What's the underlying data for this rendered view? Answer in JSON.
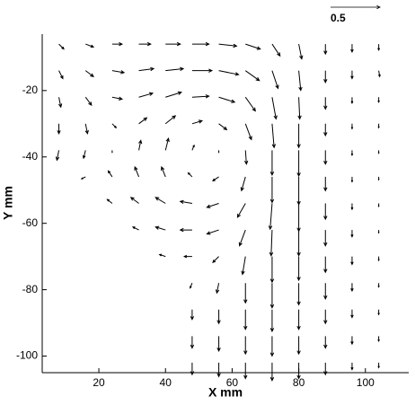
{
  "chart_data": {
    "type": "quiver",
    "x_label": "X mm",
    "y_label": "Y mm",
    "xlim": [
      3,
      113
    ],
    "ylim": [
      -105,
      -3
    ],
    "xticks": [
      20,
      40,
      60,
      80,
      100
    ],
    "yticks": [
      -20,
      -40,
      -60,
      -80,
      -100
    ],
    "color": "#000000",
    "reference_vector": 0.5,
    "vectors": [
      {
        "x": 8,
        "y": -6,
        "u": 0.05,
        "v": -0.05
      },
      {
        "x": 16,
        "y": -6,
        "u": 0.08,
        "v": -0.03
      },
      {
        "x": 24,
        "y": -6,
        "u": 0.1,
        "v": 0
      },
      {
        "x": 32,
        "y": -6,
        "u": 0.12,
        "v": 0
      },
      {
        "x": 40,
        "y": -6,
        "u": 0.15,
        "v": 0
      },
      {
        "x": 48,
        "y": -6,
        "u": 0.17,
        "v": 0
      },
      {
        "x": 56,
        "y": -6,
        "u": 0.18,
        "v": -0.02
      },
      {
        "x": 64,
        "y": -6,
        "u": 0.15,
        "v": -0.05
      },
      {
        "x": 72,
        "y": -6,
        "u": 0.08,
        "v": -0.12
      },
      {
        "x": 80,
        "y": -6,
        "u": 0.03,
        "v": -0.15
      },
      {
        "x": 88,
        "y": -6,
        "u": 0,
        "v": -0.1
      },
      {
        "x": 96,
        "y": -6,
        "u": 0,
        "v": -0.08
      },
      {
        "x": 104,
        "y": -6,
        "u": 0,
        "v": -0.06
      },
      {
        "x": 8,
        "y": -14,
        "u": 0.04,
        "v": -0.08
      },
      {
        "x": 16,
        "y": -14,
        "u": 0.08,
        "v": -0.06
      },
      {
        "x": 24,
        "y": -14,
        "u": 0.12,
        "v": -0.02
      },
      {
        "x": 32,
        "y": -14,
        "u": 0.15,
        "v": 0.02
      },
      {
        "x": 40,
        "y": -14,
        "u": 0.18,
        "v": 0.02
      },
      {
        "x": 48,
        "y": -14,
        "u": 0.2,
        "v": 0
      },
      {
        "x": 56,
        "y": -14,
        "u": 0.2,
        "v": -0.04
      },
      {
        "x": 64,
        "y": -14,
        "u": 0.14,
        "v": -0.1
      },
      {
        "x": 72,
        "y": -14,
        "u": 0.06,
        "v": -0.18
      },
      {
        "x": 80,
        "y": -14,
        "u": 0.02,
        "v": -0.2
      },
      {
        "x": 88,
        "y": -14,
        "u": 0,
        "v": -0.12
      },
      {
        "x": 96,
        "y": -14,
        "u": 0,
        "v": -0.08
      },
      {
        "x": 104,
        "y": -14,
        "u": 0.01,
        "v": -0.06
      },
      {
        "x": 8,
        "y": -22,
        "u": 0.02,
        "v": -0.1
      },
      {
        "x": 16,
        "y": -22,
        "u": 0.06,
        "v": -0.08
      },
      {
        "x": 24,
        "y": -22,
        "u": 0.1,
        "v": -0.02
      },
      {
        "x": 32,
        "y": -22,
        "u": 0.14,
        "v": 0.04
      },
      {
        "x": 40,
        "y": -22,
        "u": 0.16,
        "v": 0.05
      },
      {
        "x": 48,
        "y": -22,
        "u": 0.17,
        "v": 0.01
      },
      {
        "x": 56,
        "y": -22,
        "u": 0.16,
        "v": -0.05
      },
      {
        "x": 64,
        "y": -22,
        "u": 0.1,
        "v": -0.14
      },
      {
        "x": 72,
        "y": -22,
        "u": 0.04,
        "v": -0.22
      },
      {
        "x": 80,
        "y": -22,
        "u": 0.01,
        "v": -0.22
      },
      {
        "x": 88,
        "y": -22,
        "u": 0,
        "v": -0.12
      },
      {
        "x": 96,
        "y": -22,
        "u": 0,
        "v": -0.06
      },
      {
        "x": 104,
        "y": -22,
        "u": 0,
        "v": -0.05
      },
      {
        "x": 8,
        "y": -30,
        "u": 0,
        "v": -0.1
      },
      {
        "x": 16,
        "y": -30,
        "u": 0.02,
        "v": -0.1
      },
      {
        "x": 24,
        "y": -30,
        "u": 0.04,
        "v": -0.04
      },
      {
        "x": 32,
        "y": -30,
        "u": 0.08,
        "v": 0.06
      },
      {
        "x": 40,
        "y": -30,
        "u": 0.1,
        "v": 0.08
      },
      {
        "x": 48,
        "y": -30,
        "u": 0.1,
        "v": 0.03
      },
      {
        "x": 56,
        "y": -30,
        "u": 0.08,
        "v": -0.06
      },
      {
        "x": 64,
        "y": -30,
        "u": 0.06,
        "v": -0.16
      },
      {
        "x": 72,
        "y": -30,
        "u": 0.02,
        "v": -0.24
      },
      {
        "x": 80,
        "y": -30,
        "u": 0,
        "v": -0.24
      },
      {
        "x": 88,
        "y": -30,
        "u": 0,
        "v": -0.12
      },
      {
        "x": 96,
        "y": -30,
        "u": 0,
        "v": -0.05
      },
      {
        "x": 104,
        "y": -30,
        "u": 0,
        "v": -0.04
      },
      {
        "x": 8,
        "y": -38,
        "u": -0.02,
        "v": -0.1
      },
      {
        "x": 16,
        "y": -38,
        "u": -0.02,
        "v": -0.08
      },
      {
        "x": 24,
        "y": -38,
        "u": 0,
        "v": -0.02
      },
      {
        "x": 32,
        "y": -38,
        "u": 0.02,
        "v": 0.1
      },
      {
        "x": 40,
        "y": -38,
        "u": 0.03,
        "v": 0.12
      },
      {
        "x": 48,
        "y": -38,
        "u": 0.02,
        "v": 0.05
      },
      {
        "x": 56,
        "y": -38,
        "u": 0,
        "v": -0.02
      },
      {
        "x": 64,
        "y": -38,
        "u": 0.01,
        "v": -0.14
      },
      {
        "x": 72,
        "y": -38,
        "u": 0,
        "v": -0.25
      },
      {
        "x": 80,
        "y": -38,
        "u": 0,
        "v": -0.26
      },
      {
        "x": 88,
        "y": -38,
        "u": 0,
        "v": -0.14
      },
      {
        "x": 96,
        "y": -38,
        "u": 0,
        "v": -0.05
      },
      {
        "x": 104,
        "y": -38,
        "u": 0,
        "v": -0.03
      },
      {
        "x": 16,
        "y": -46,
        "u": -0.04,
        "v": -0.02
      },
      {
        "x": 24,
        "y": -46,
        "u": -0.04,
        "v": 0.06
      },
      {
        "x": 32,
        "y": -46,
        "u": -0.04,
        "v": 0.1
      },
      {
        "x": 40,
        "y": -46,
        "u": -0.04,
        "v": 0.1
      },
      {
        "x": 48,
        "y": -46,
        "u": -0.04,
        "v": 0.04
      },
      {
        "x": 56,
        "y": -46,
        "u": -0.06,
        "v": -0.04
      },
      {
        "x": 64,
        "y": -46,
        "u": -0.04,
        "v": -0.14
      },
      {
        "x": 72,
        "y": -46,
        "u": 0,
        "v": -0.26
      },
      {
        "x": 80,
        "y": -46,
        "u": 0,
        "v": -0.28
      },
      {
        "x": 88,
        "y": -46,
        "u": 0,
        "v": -0.14
      },
      {
        "x": 96,
        "y": -46,
        "u": 0,
        "v": -0.05
      },
      {
        "x": 104,
        "y": -46,
        "u": 0,
        "v": -0.03
      },
      {
        "x": 24,
        "y": -54,
        "u": -0.05,
        "v": 0.04
      },
      {
        "x": 32,
        "y": -54,
        "u": -0.08,
        "v": 0.06
      },
      {
        "x": 40,
        "y": -54,
        "u": -0.1,
        "v": 0.06
      },
      {
        "x": 48,
        "y": -54,
        "u": -0.12,
        "v": 0.02
      },
      {
        "x": 56,
        "y": -54,
        "u": -0.12,
        "v": -0.04
      },
      {
        "x": 64,
        "y": -54,
        "u": -0.08,
        "v": -0.14
      },
      {
        "x": 72,
        "y": -54,
        "u": -0.02,
        "v": -0.26
      },
      {
        "x": 80,
        "y": -54,
        "u": 0,
        "v": -0.28
      },
      {
        "x": 88,
        "y": -54,
        "u": 0,
        "v": -0.16
      },
      {
        "x": 96,
        "y": -54,
        "u": 0,
        "v": -0.06
      },
      {
        "x": 104,
        "y": -54,
        "u": 0,
        "v": -0.03
      },
      {
        "x": 32,
        "y": -62,
        "u": -0.06,
        "v": 0.03
      },
      {
        "x": 40,
        "y": -62,
        "u": -0.1,
        "v": 0.03
      },
      {
        "x": 48,
        "y": -62,
        "u": -0.12,
        "v": 0
      },
      {
        "x": 56,
        "y": -62,
        "u": -0.12,
        "v": -0.04
      },
      {
        "x": 64,
        "y": -62,
        "u": -0.06,
        "v": -0.16
      },
      {
        "x": 72,
        "y": -62,
        "u": -0.01,
        "v": -0.26
      },
      {
        "x": 80,
        "y": -62,
        "u": 0,
        "v": -0.26
      },
      {
        "x": 88,
        "y": -62,
        "u": 0,
        "v": -0.16
      },
      {
        "x": 96,
        "y": -62,
        "u": 0,
        "v": -0.07
      },
      {
        "x": 104,
        "y": -62,
        "u": 0,
        "v": -0.03
      },
      {
        "x": 40,
        "y": -70,
        "u": -0.06,
        "v": 0.02
      },
      {
        "x": 48,
        "y": -70,
        "u": -0.08,
        "v": 0
      },
      {
        "x": 56,
        "y": -70,
        "u": -0.06,
        "v": -0.06
      },
      {
        "x": 64,
        "y": -70,
        "u": -0.03,
        "v": -0.18
      },
      {
        "x": 72,
        "y": -70,
        "u": 0,
        "v": -0.26
      },
      {
        "x": 80,
        "y": -70,
        "u": 0,
        "v": -0.24
      },
      {
        "x": 88,
        "y": -70,
        "u": 0,
        "v": -0.16
      },
      {
        "x": 96,
        "y": -70,
        "u": 0,
        "v": -0.08
      },
      {
        "x": 104,
        "y": -70,
        "u": 0,
        "v": -0.04
      },
      {
        "x": 48,
        "y": -78,
        "u": -0.02,
        "v": -0.05
      },
      {
        "x": 56,
        "y": -78,
        "u": -0.02,
        "v": -0.1
      },
      {
        "x": 64,
        "y": -78,
        "u": 0,
        "v": -0.2
      },
      {
        "x": 72,
        "y": -78,
        "u": 0,
        "v": -0.25
      },
      {
        "x": 80,
        "y": -78,
        "u": 0,
        "v": -0.22
      },
      {
        "x": 88,
        "y": -78,
        "u": 0,
        "v": -0.16
      },
      {
        "x": 96,
        "y": -78,
        "u": 0,
        "v": -0.08
      },
      {
        "x": 104,
        "y": -78,
        "u": 0,
        "v": -0.04
      },
      {
        "x": 48,
        "y": -86,
        "u": 0,
        "v": -0.1
      },
      {
        "x": 56,
        "y": -86,
        "u": 0,
        "v": -0.14
      },
      {
        "x": 64,
        "y": -86,
        "u": 0,
        "v": -0.2
      },
      {
        "x": 72,
        "y": -86,
        "u": 0,
        "v": -0.22
      },
      {
        "x": 80,
        "y": -86,
        "u": 0,
        "v": -0.2
      },
      {
        "x": 88,
        "y": -86,
        "u": 0,
        "v": -0.14
      },
      {
        "x": 96,
        "y": -86,
        "u": 0,
        "v": -0.08
      },
      {
        "x": 104,
        "y": -86,
        "u": 0,
        "v": -0.05
      },
      {
        "x": 48,
        "y": -94,
        "u": 0,
        "v": -0.12
      },
      {
        "x": 56,
        "y": -94,
        "u": 0,
        "v": -0.15
      },
      {
        "x": 64,
        "y": -94,
        "u": 0,
        "v": -0.18
      },
      {
        "x": 72,
        "y": -94,
        "u": 0,
        "v": -0.2
      },
      {
        "x": 80,
        "y": -94,
        "u": 0,
        "v": -0.18
      },
      {
        "x": 88,
        "y": -94,
        "u": 0,
        "v": -0.12
      },
      {
        "x": 96,
        "y": -94,
        "u": 0,
        "v": -0.08
      },
      {
        "x": 104,
        "y": -94,
        "u": 0,
        "v": -0.05
      },
      {
        "x": 48,
        "y": -102,
        "u": 0,
        "v": -0.12
      },
      {
        "x": 56,
        "y": -102,
        "u": 0,
        "v": -0.14
      },
      {
        "x": 64,
        "y": -102,
        "u": 0,
        "v": -0.16
      },
      {
        "x": 72,
        "y": -102,
        "u": 0,
        "v": -0.18
      },
      {
        "x": 80,
        "y": -102,
        "u": 0,
        "v": -0.16
      },
      {
        "x": 88,
        "y": -102,
        "u": 0,
        "v": -0.12
      },
      {
        "x": 96,
        "y": -102,
        "u": 0,
        "v": -0.07
      },
      {
        "x": 104,
        "y": -102,
        "u": 0,
        "v": -0.05
      }
    ]
  }
}
